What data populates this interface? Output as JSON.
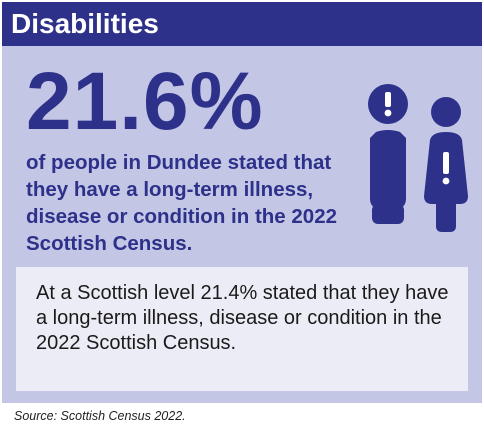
{
  "header": {
    "title": "Disabilities"
  },
  "stat": {
    "value": "21.6%"
  },
  "description": "of people in Dundee stated that they have a long-term illness, disease or condition in the 2022 Scottish Census.",
  "note": {
    "text": "At a Scottish level 21.4% stated that they have a long-term illness, disease or condition in the 2022 Scottish Census."
  },
  "source": "Source: Scottish Census 2022.",
  "icons": {
    "figures": "two-people-exclamation-icon"
  },
  "colors": {
    "primary": "#2e3189",
    "background": "#c4c6e6",
    "note_background": "#ececf6"
  }
}
